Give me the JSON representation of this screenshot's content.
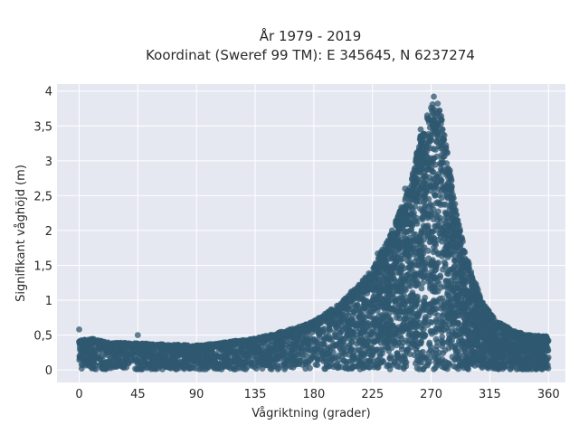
{
  "chart_data": {
    "type": "scatter",
    "title_line1": "År 1979 - 2019",
    "title_line2": "Koordinat (Sweref 99 TM): E 345645, N 6237274",
    "xlabel": "Vågriktning (grader)",
    "ylabel": "Signifikant våghöjd (m)",
    "xlim": [
      -17,
      373
    ],
    "ylim": [
      -0.18,
      4.1
    ],
    "xticks": [
      0,
      45,
      90,
      135,
      180,
      225,
      270,
      315,
      360
    ],
    "xtick_labels": [
      "0",
      "45",
      "90",
      "135",
      "180",
      "225",
      "270",
      "315",
      "360"
    ],
    "yticks": [
      0,
      0.5,
      1,
      1.5,
      2,
      2.5,
      3,
      3.5,
      4
    ],
    "ytick_labels": [
      "0",
      "0,5",
      "1",
      "1,5",
      "2",
      "2,5",
      "3",
      "3,5",
      "4"
    ],
    "grid": true,
    "marker_color": "#2f5870",
    "plot_bg": "#e5e8f0",
    "envelope": {
      "direction": [
        0,
        10,
        20,
        45,
        90,
        135,
        165,
        180,
        200,
        225,
        240,
        255,
        262,
        268,
        272,
        276,
        280,
        285,
        290,
        295,
        300,
        310,
        320,
        335,
        345,
        360
      ],
      "max_height": [
        0.42,
        0.45,
        0.4,
        0.38,
        0.35,
        0.45,
        0.6,
        0.7,
        0.95,
        1.45,
        2.0,
        2.75,
        3.4,
        3.7,
        3.85,
        3.75,
        3.5,
        2.8,
        2.2,
        1.8,
        1.45,
        0.95,
        0.7,
        0.55,
        0.5,
        0.48
      ]
    },
    "outliers": [
      {
        "x": 0,
        "y": 0.58
      },
      {
        "x": 45,
        "y": 0.5
      },
      {
        "x": 272,
        "y": 3.92
      },
      {
        "x": 267,
        "y": 3.65
      },
      {
        "x": 275,
        "y": 3.82
      },
      {
        "x": 262,
        "y": 3.45
      },
      {
        "x": 283,
        "y": 2.82
      },
      {
        "x": 250,
        "y": 2.6
      },
      {
        "x": 240,
        "y": 2.0
      },
      {
        "x": 229,
        "y": 1.67
      },
      {
        "x": 296,
        "y": 1.5
      }
    ]
  }
}
